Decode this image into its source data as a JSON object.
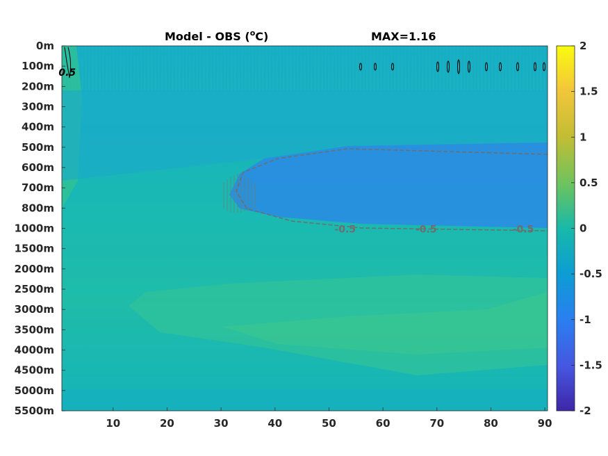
{
  "chart_data": {
    "type": "heatmap",
    "title": "Model - OBS (",
    "title_sup": "o",
    "title_unit": "C)",
    "max_label": "MAX=1.16",
    "y_ticks": [
      "0m",
      "100m",
      "200m",
      "300m",
      "400m",
      "500m",
      "600m",
      "700m",
      "800m",
      "1000m",
      "1500m",
      "2000m",
      "2500m",
      "3000m",
      "3500m",
      "4000m",
      "4500m",
      "5000m",
      "5500m"
    ],
    "x_ticks": [
      10,
      20,
      30,
      40,
      50,
      60,
      70,
      80,
      90
    ],
    "xlim": [
      0.5,
      90.5
    ],
    "colorbar": {
      "ticks": [
        "2",
        "1.5",
        "1",
        "0.5",
        "0",
        "-0.5",
        "-1",
        "-1.5",
        "-2"
      ],
      "range": [
        -2,
        2
      ],
      "colormap": "parula"
    },
    "contour_labels": [
      {
        "text": "0.5",
        "x": 1.5,
        "depth": "100m",
        "color": "#000000"
      },
      {
        "text": "-0.5",
        "x": 68,
        "depth": "1000m",
        "color": "#6e6e6e"
      },
      {
        "text": "-0.5",
        "x": 86,
        "depth": "1000m",
        "color": "#6e6e6e"
      },
      {
        "text": "-0.5",
        "x": 53,
        "depth": "1000m",
        "color": "#6e6e6e"
      }
    ],
    "colors": {
      "background_field": "#19b9b4",
      "cold_core": "#2a8ae6",
      "warm_band": "#2dc2a0",
      "positive_contour": "#000000",
      "negative_contour": "#6e6e6e"
    }
  }
}
